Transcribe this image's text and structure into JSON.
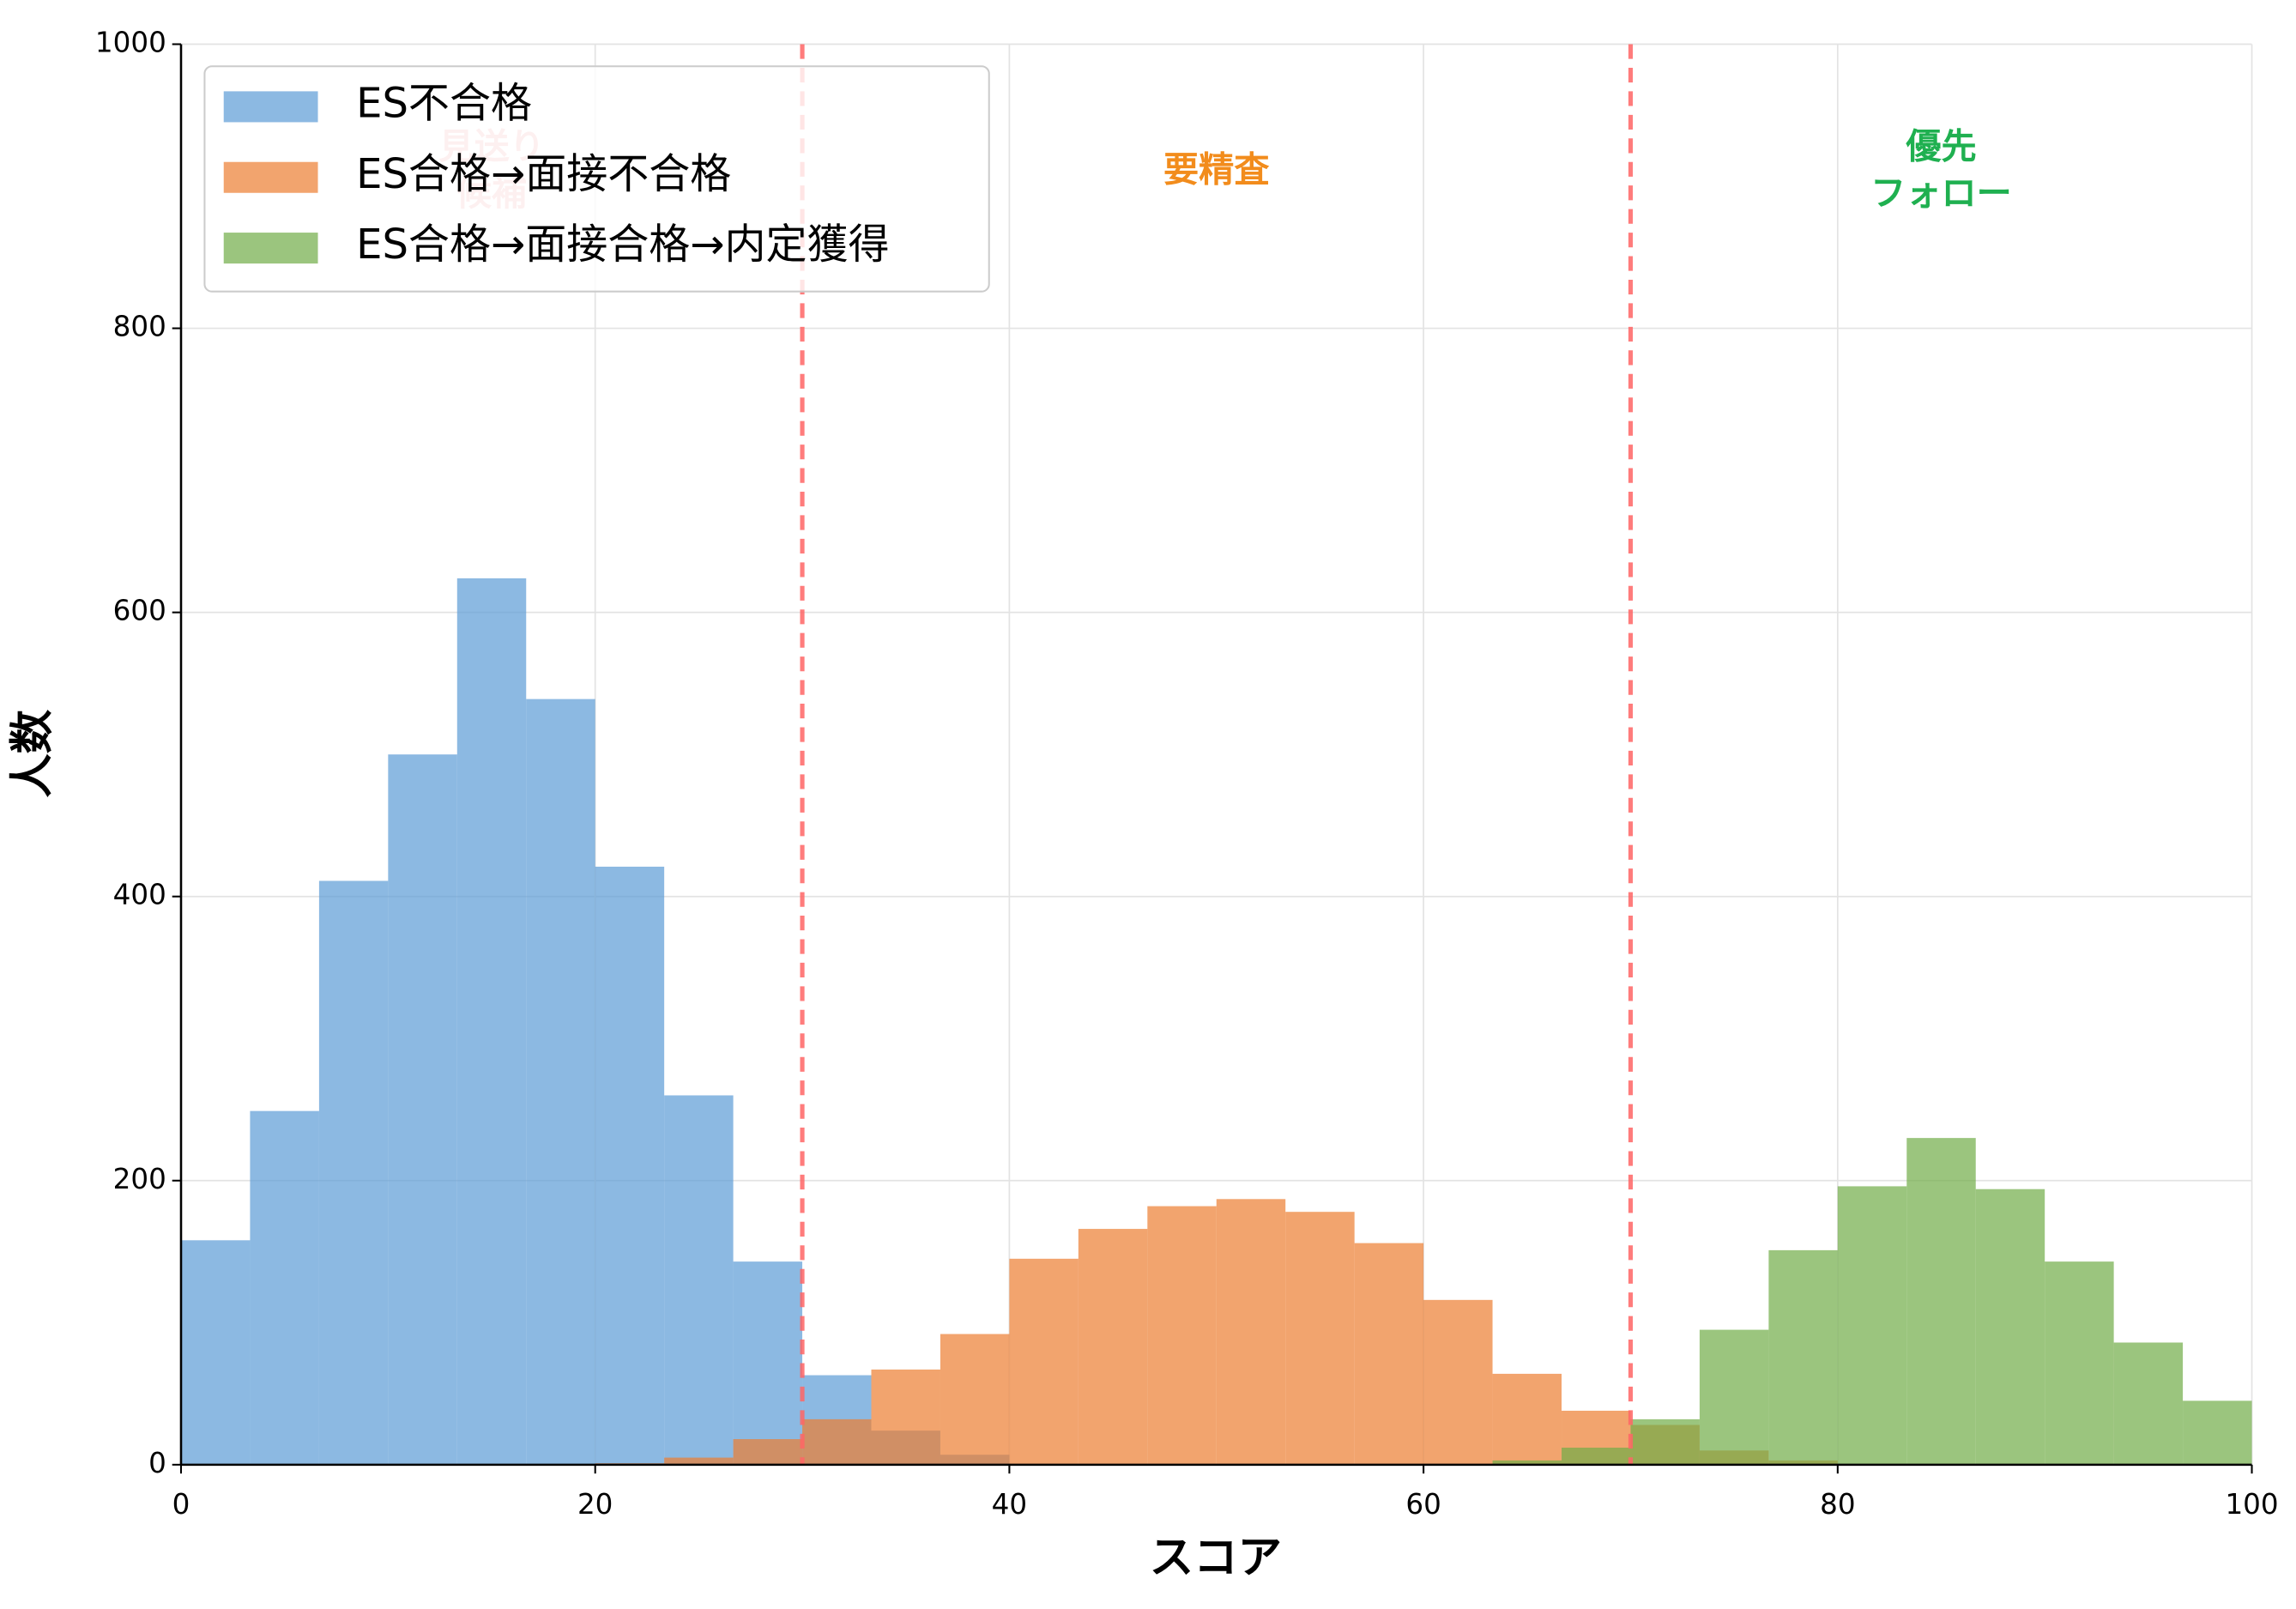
{
  "chart_data": {
    "type": "histogram",
    "xlabel": "スコア",
    "ylabel": "人数",
    "bins": [
      0,
      3.333,
      6.667,
      10,
      13.333,
      16.667,
      20,
      23.333,
      26.667,
      30,
      33.333,
      36.667,
      40,
      43.333,
      46.667,
      50,
      53.333,
      56.667,
      60,
      63.333,
      66.667,
      70,
      73.333,
      76.667,
      80,
      83.333,
      86.667,
      90,
      93.333,
      96.667,
      100
    ],
    "series": [
      {
        "name": "ES不合格",
        "color": "#5b9bd5",
        "values": [
          158,
          249,
          411,
          500,
          624,
          539,
          421,
          260,
          143,
          63,
          24,
          7,
          0,
          0,
          0,
          0,
          0,
          0,
          0,
          0,
          0,
          0,
          0,
          0,
          0,
          0,
          0,
          0,
          0,
          0
        ]
      },
      {
        "name": "ES合格→面接不合格",
        "color": "#ed7d31",
        "values": [
          0,
          0,
          0,
          0,
          0,
          0,
          1,
          5,
          18,
          32,
          67,
          92,
          145,
          166,
          182,
          187,
          178,
          156,
          116,
          64,
          38,
          28,
          10,
          3,
          0,
          0,
          0,
          0,
          0,
          0
        ]
      },
      {
        "name": "ES合格→面接合格→内定獲得",
        "color": "#70ad47",
        "values": [
          0,
          0,
          0,
          0,
          0,
          0,
          0,
          0,
          0,
          0,
          0,
          0,
          0,
          0,
          0,
          0,
          0,
          0,
          0,
          3,
          12,
          32,
          95,
          151,
          196,
          230,
          194,
          143,
          86,
          45
        ]
      }
    ],
    "thresholds": [
      30,
      70
    ],
    "threshold_color": "#ff6666",
    "annotations": [
      {
        "text": "見送り\n候補",
        "x": 15,
        "color": "#f4b6b6"
      },
      {
        "text": "要精査",
        "x": 50,
        "color": "#f28c1c"
      },
      {
        "text": "優先\nフォロー",
        "x": 85,
        "color": "#1fb050"
      }
    ],
    "xlim": [
      0,
      100
    ],
    "xticks": [
      0,
      20,
      40,
      60,
      80,
      100
    ],
    "ylim": [
      0,
      1000
    ],
    "yticks": [
      0,
      200,
      400,
      600,
      800,
      1000
    ],
    "grid": true,
    "legend": "upper left"
  }
}
